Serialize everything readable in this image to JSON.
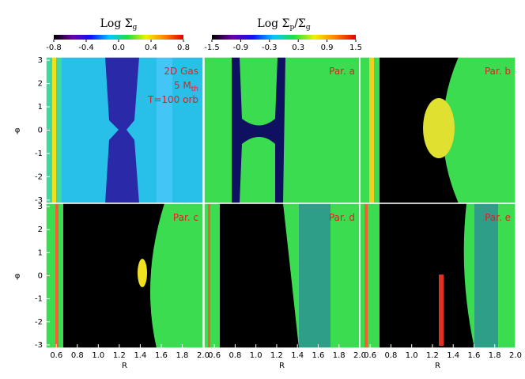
{
  "chart_data": [
    {
      "type": "colorbar",
      "title": [
        {
          "text": "Log Σ"
        },
        {
          "text": "g",
          "sub": true
        }
      ],
      "xlim": [
        -0.8,
        0.8
      ],
      "xticks": [
        -0.8,
        -0.4,
        {
          "value": 0,
          "label": "0.0"
        },
        0.4,
        0.8
      ],
      "colors": [
        "#000000",
        "#6a00a8",
        "#1010ff",
        "#00c8ff",
        "#20e040",
        "#f0f000",
        "#ff8000",
        "#e00000"
      ]
    },
    {
      "type": "colorbar",
      "title": [
        {
          "text": "Log Σ"
        },
        {
          "text": "p",
          "sub": true
        },
        {
          "text": "/Σ"
        },
        {
          "text": "g",
          "sub": true
        }
      ],
      "xlim": [
        -1.5,
        1.5
      ],
      "xticks": [
        -1.5,
        -0.9,
        -0.3,
        0.3,
        0.9,
        1.5
      ],
      "colors": [
        "#000000",
        "#6a00a8",
        "#1010ff",
        "#00c8ff",
        "#20e040",
        "#f0f000",
        "#ff8000",
        "#e00000"
      ]
    },
    {
      "type": "image",
      "annotations": [
        [
          {
            "text": "2D Gas"
          }
        ],
        [
          {
            "text": "5 M"
          },
          {
            "text": "th",
            "sub": true
          }
        ],
        [
          {
            "text": "T=100 orb"
          }
        ]
      ],
      "ylabel": "φ",
      "xlim": [
        0.5,
        2.0
      ],
      "ylim": [
        -3.14,
        3.14
      ],
      "yticks": [
        -3,
        -2,
        -1,
        0,
        1,
        2,
        3
      ]
    },
    {
      "type": "image",
      "annotations": [
        [
          {
            "text": "Par. a"
          }
        ]
      ],
      "xlim": [
        0.5,
        2.0
      ],
      "ylim": [
        -3.14,
        3.14
      ]
    },
    {
      "type": "image",
      "annotations": [
        [
          {
            "text": "Par. b"
          }
        ]
      ],
      "xlim": [
        0.5,
        2.0
      ],
      "ylim": [
        -3.14,
        3.14
      ]
    },
    {
      "type": "image",
      "annotations": [
        [
          {
            "text": "Par. c"
          }
        ]
      ],
      "ylabel": "φ",
      "xlabel": "R",
      "xlim": [
        0.5,
        2.0
      ],
      "ylim": [
        -3.14,
        3.14
      ],
      "yticks": [
        -3,
        -2,
        -1,
        0,
        1,
        2,
        3
      ],
      "xticks": [
        0.6,
        0.8,
        {
          "value": 1,
          "label": "1.0"
        },
        1.2,
        1.4,
        1.6,
        1.8,
        {
          "value": 2,
          "label": "2.0"
        }
      ]
    },
    {
      "type": "image",
      "annotations": [
        [
          {
            "text": "Par. d"
          }
        ]
      ],
      "xlabel": "R",
      "xlim": [
        0.5,
        2.0
      ],
      "ylim": [
        -3.14,
        3.14
      ],
      "xticks": [
        0.6,
        0.8,
        {
          "value": 1,
          "label": "1.0"
        },
        1.2,
        1.4,
        1.6,
        1.8,
        {
          "value": 2,
          "label": "2.0"
        }
      ]
    },
    {
      "type": "image",
      "annotations": [
        [
          {
            "text": "Par. e"
          }
        ]
      ],
      "xlabel": "R",
      "xlim": [
        0.5,
        2.0
      ],
      "ylim": [
        -3.14,
        3.14
      ],
      "xticks": [
        0.6,
        0.8,
        {
          "value": 1,
          "label": "1.0"
        },
        1.2,
        1.4,
        1.6,
        1.8,
        {
          "value": 2,
          "label": "2.0"
        }
      ]
    }
  ]
}
